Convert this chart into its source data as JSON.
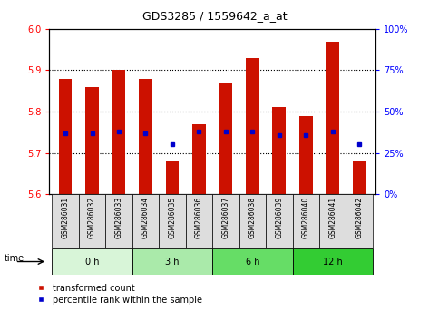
{
  "title": "GDS3285 / 1559642_a_at",
  "samples": [
    "GSM286031",
    "GSM286032",
    "GSM286033",
    "GSM286034",
    "GSM286035",
    "GSM286036",
    "GSM286037",
    "GSM286038",
    "GSM286039",
    "GSM286040",
    "GSM286041",
    "GSM286042"
  ],
  "transformed_count": [
    5.88,
    5.86,
    5.9,
    5.88,
    5.68,
    5.77,
    5.87,
    5.93,
    5.81,
    5.79,
    5.97,
    5.68
  ],
  "percentile_rank_pct": [
    37,
    37,
    38,
    37,
    30,
    38,
    38,
    38,
    36,
    36,
    38,
    30
  ],
  "ylim": [
    5.6,
    6.0
  ],
  "yticks": [
    5.6,
    5.7,
    5.8,
    5.9,
    6.0
  ],
  "right_yticks_pct": [
    0,
    25,
    50,
    75,
    100
  ],
  "time_groups": [
    {
      "label": "0 h",
      "indices": [
        0,
        1,
        2
      ],
      "color": "#d8f5d8"
    },
    {
      "label": "3 h",
      "indices": [
        3,
        4,
        5
      ],
      "color": "#aaeaaa"
    },
    {
      "label": "6 h",
      "indices": [
        6,
        7,
        8
      ],
      "color": "#66dd66"
    },
    {
      "label": "12 h",
      "indices": [
        9,
        10,
        11
      ],
      "color": "#33cc33"
    }
  ],
  "bar_color": "#cc1100",
  "percentile_color": "#0000cc",
  "bar_width": 0.5,
  "base": 5.6,
  "tick_bg_color": "#dddddd"
}
